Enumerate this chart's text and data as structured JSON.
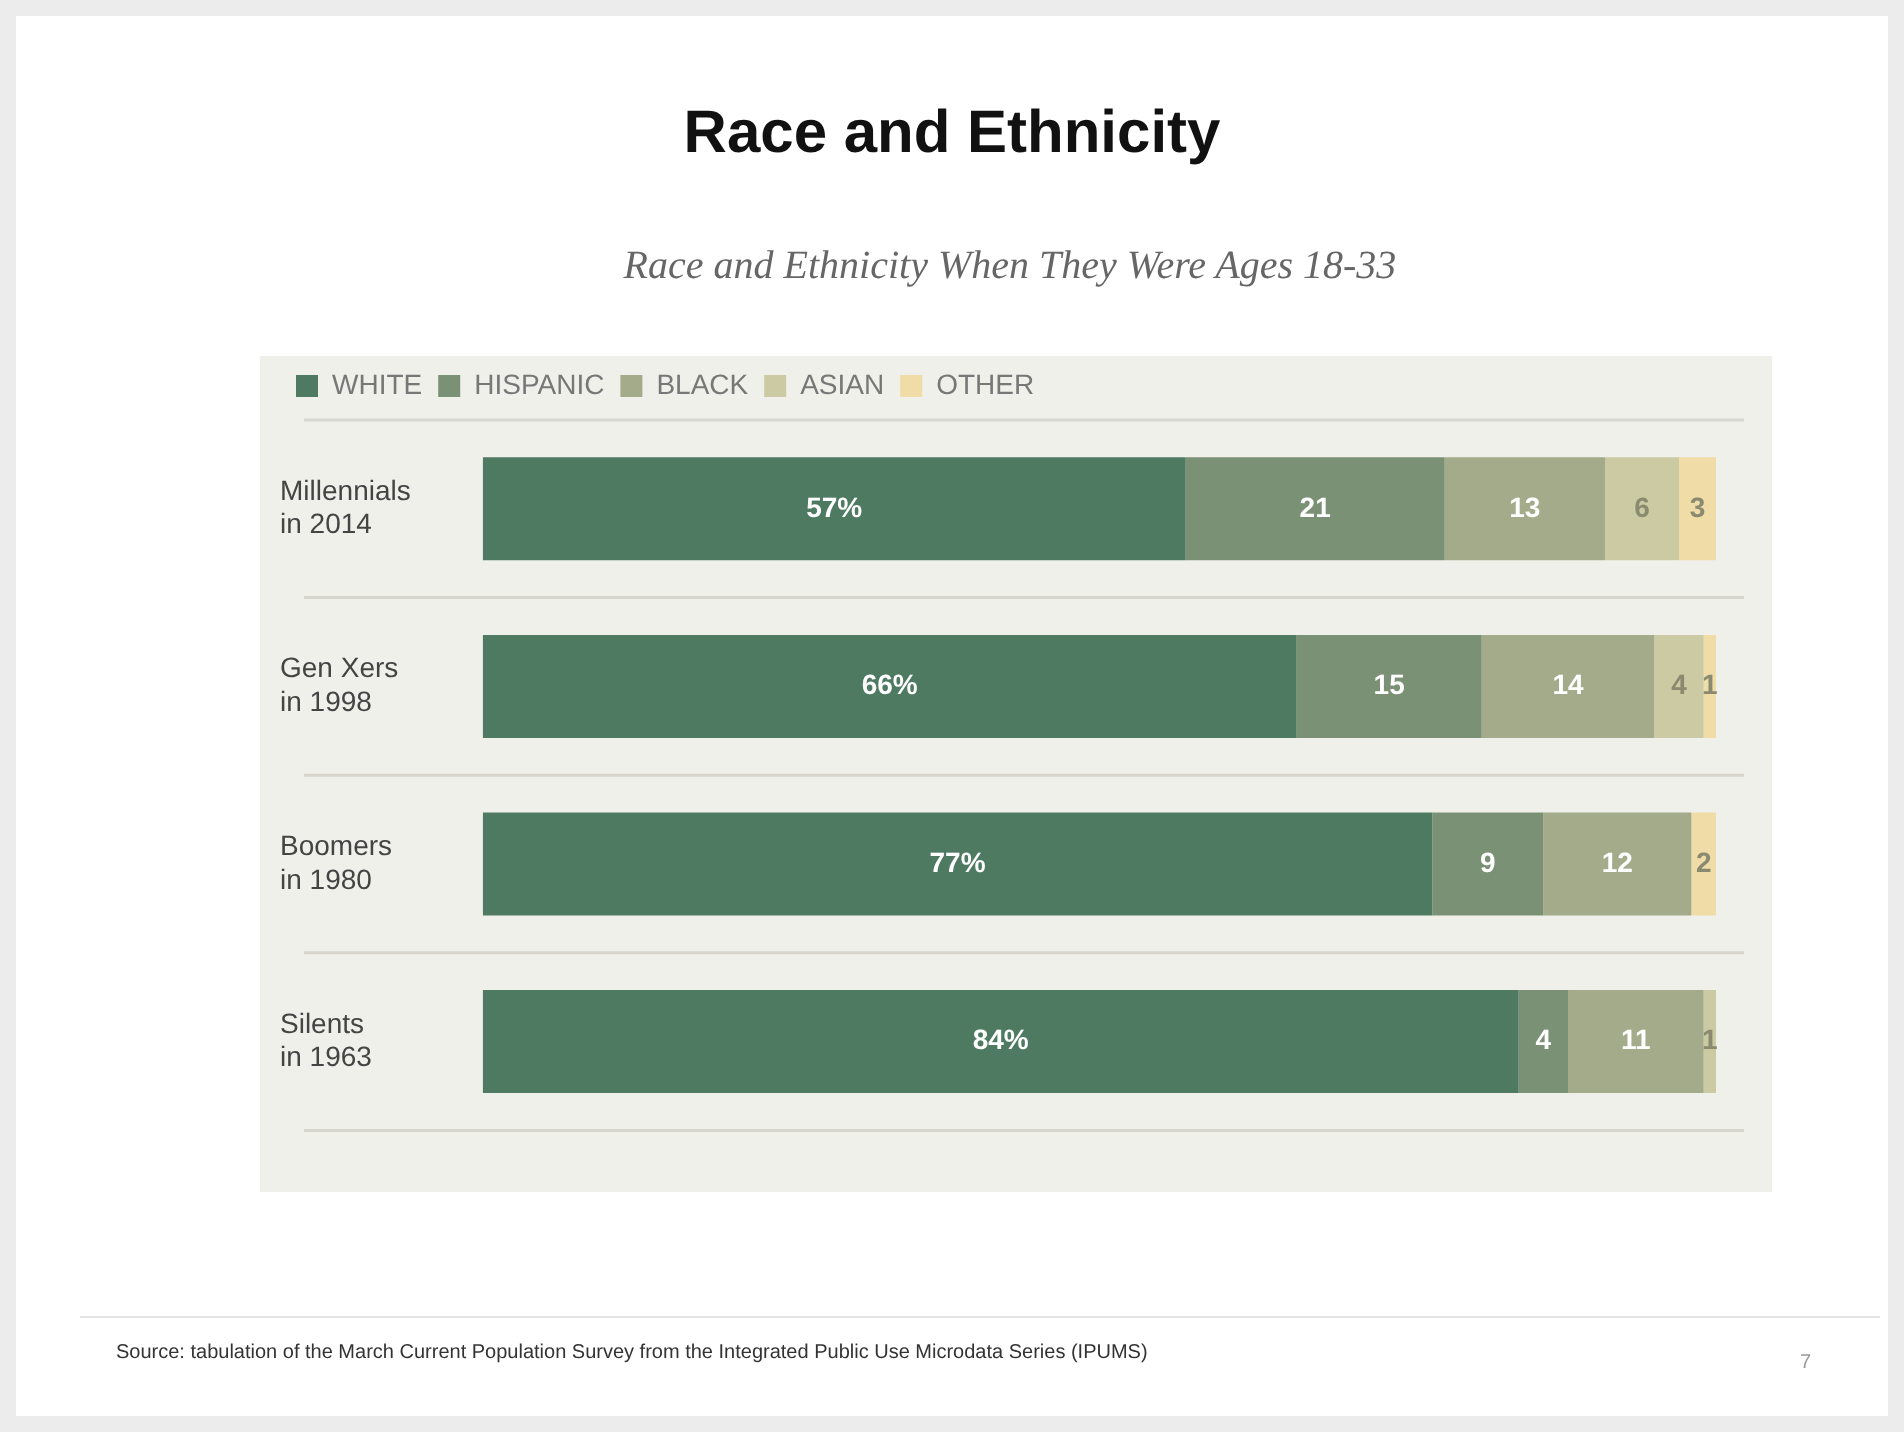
{
  "chart_data": {
    "type": "bar",
    "orientation": "horizontal",
    "stacked": true,
    "title": "Race and Ethnicity",
    "subtitle": "Race and Ethnicity When They Were Ages 18-33",
    "categories": [
      "Millennials\nin 2014",
      "Gen Xers\nin 1998",
      "Boomers\nin 1980",
      "Silents\nin 1963"
    ],
    "series": [
      {
        "name": "WHITE",
        "color": "#4f7a62",
        "values": [
          57,
          66,
          77,
          84
        ],
        "value_labels": [
          "57%",
          "66%",
          "77%",
          "84%"
        ]
      },
      {
        "name": "HISPANIC",
        "color": "#7a9175",
        "values": [
          21,
          15,
          9,
          4
        ],
        "value_labels": [
          "21",
          "15",
          "9",
          "4"
        ]
      },
      {
        "name": "BLACK",
        "color": "#a3ab8a",
        "values": [
          13,
          14,
          12,
          11
        ],
        "value_labels": [
          "13",
          "14",
          "12",
          "11"
        ]
      },
      {
        "name": "ASIAN",
        "color": "#cbcaa2",
        "values": [
          6,
          4,
          null,
          1
        ],
        "value_labels": [
          "6",
          "4",
          null,
          "1"
        ]
      },
      {
        "name": "OTHER",
        "color": "#efdca6",
        "values": [
          3,
          1,
          2,
          null
        ],
        "value_labels": [
          "3",
          "1",
          "2",
          null
        ]
      }
    ],
    "xlim": [
      0,
      100
    ],
    "tick_labels": "y",
    "grid": "y",
    "legend": "top left",
    "annotations": [
      "Source: tabulation of the March Current Population Survey from the Integrated Public Use Microdata Series (IPUMS)",
      "7"
    ]
  }
}
